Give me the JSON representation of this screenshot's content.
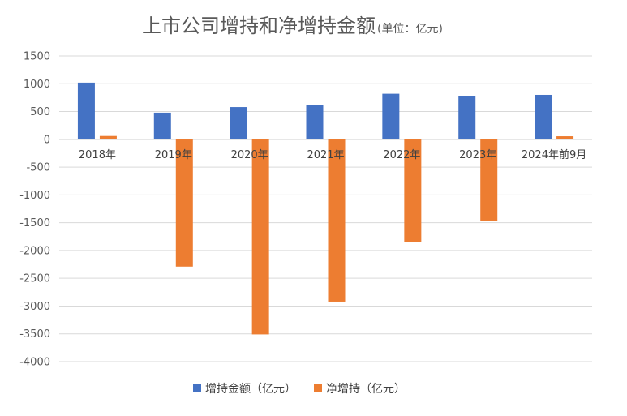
{
  "chart_data": {
    "type": "bar",
    "title": "上市公司增持和净增持金额",
    "subtitle": "(单位：亿元)",
    "categories": [
      "2018年",
      "2019年",
      "2020年",
      "2021年",
      "2022年",
      "2023年",
      "2024年前9月"
    ],
    "series": [
      {
        "name": "增持金额（亿元）",
        "color": "#4472c4",
        "values": [
          1020,
          480,
          580,
          610,
          820,
          780,
          800
        ]
      },
      {
        "name": "净增持（亿元）",
        "color": "#ed7d31",
        "values": [
          60,
          -2290,
          -3510,
          -2920,
          -1850,
          -1470,
          55
        ]
      }
    ],
    "ylim": [
      -4000,
      1500
    ],
    "yticks": [
      1500,
      1000,
      500,
      0,
      -500,
      -1000,
      -1500,
      -2000,
      -2500,
      -3000,
      -3500,
      -4000
    ],
    "ytick_labels": [
      "1500",
      "1000",
      "500",
      "0",
      "-500",
      "-1000",
      "-1500",
      "-2000",
      "-2500",
      "-3000",
      "-3500",
      "-4000"
    ],
    "grid": true,
    "legend_position": "bottom"
  }
}
